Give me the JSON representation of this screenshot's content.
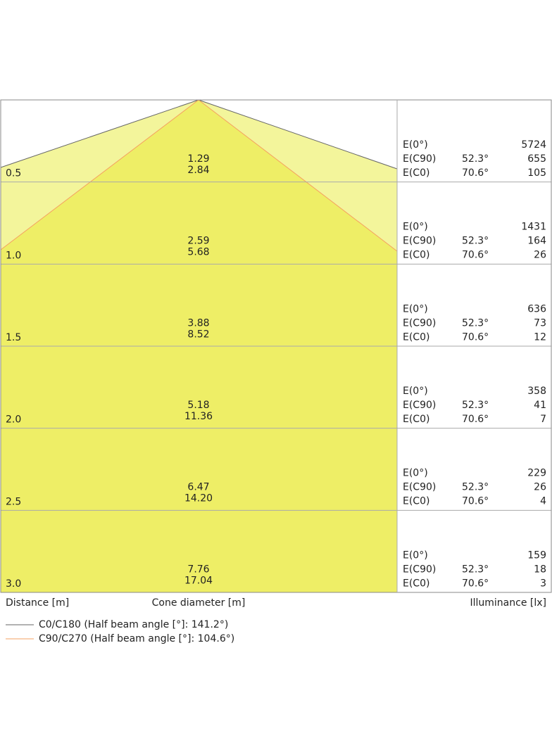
{
  "row_labels": {
    "e0": "E(0°)",
    "c90": "E(C90)",
    "c0": "E(C0)"
  },
  "rows": [
    {
      "distance": "0.5",
      "cone": [
        "1.29",
        "2.84"
      ],
      "e0": "5724",
      "c90_angle": "52.3°",
      "c90": "655",
      "c0_angle": "70.6°",
      "c0": "105"
    },
    {
      "distance": "1.0",
      "cone": [
        "2.59",
        "5.68"
      ],
      "e0": "1431",
      "c90_angle": "52.3°",
      "c90": "164",
      "c0_angle": "70.6°",
      "c0": "26"
    },
    {
      "distance": "1.5",
      "cone": [
        "3.88",
        "8.52"
      ],
      "e0": "636",
      "c90_angle": "52.3°",
      "c90": "73",
      "c0_angle": "70.6°",
      "c0": "12"
    },
    {
      "distance": "2.0",
      "cone": [
        "5.18",
        "11.36"
      ],
      "e0": "358",
      "c90_angle": "52.3°",
      "c90": "41",
      "c0_angle": "70.6°",
      "c0": "7"
    },
    {
      "distance": "2.5",
      "cone": [
        "6.47",
        "14.20"
      ],
      "e0": "229",
      "c90_angle": "52.3°",
      "c90": "26",
      "c0_angle": "70.6°",
      "c0": "4"
    },
    {
      "distance": "3.0",
      "cone": [
        "7.76",
        "17.04"
      ],
      "e0": "159",
      "c90_angle": "52.3°",
      "c90": "18",
      "c0_angle": "70.6°",
      "c0": "3"
    }
  ],
  "footer": {
    "distance": "Distance [m]",
    "cone": "Cone diameter [m]",
    "illuminance": "Illuminance [lx]"
  },
  "legend": [
    {
      "label": "C0/C180 (Half beam angle [°]: 141.2°)",
      "color": "#666666"
    },
    {
      "label": "C90/C270 (Half beam angle [°]: 104.6°)",
      "color": "#f5a060"
    }
  ]
}
